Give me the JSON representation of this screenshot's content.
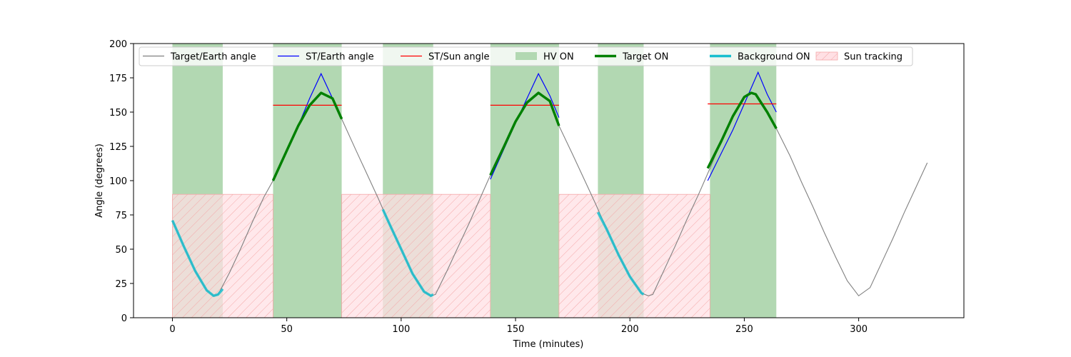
{
  "chart_data": {
    "type": "line",
    "title": "",
    "xlabel": "Time (minutes)",
    "ylabel": "Angle (degrees)",
    "xlim": [
      -17,
      346
    ],
    "ylim": [
      0,
      200
    ],
    "xticks": [
      0,
      50,
      100,
      150,
      200,
      250,
      300
    ],
    "yticks": [
      0,
      25,
      50,
      75,
      100,
      125,
      150,
      175,
      200
    ],
    "grid": false,
    "legend_position": "top-left",
    "colors": {
      "target_earth": "#808080",
      "st_earth": "#0000ff",
      "st_sun": "#ff0000",
      "hv_on": "#b2d8b2",
      "target_on": "#008000",
      "background_on": "#17becf",
      "sun_tracking_fill": "#ffe0e4",
      "sun_tracking_hatch": "#f4a7a7"
    },
    "legend": [
      {
        "key": "target_earth",
        "label": "Target/Earth angle",
        "kind": "line"
      },
      {
        "key": "st_earth",
        "label": "ST/Earth angle",
        "kind": "line"
      },
      {
        "key": "st_sun",
        "label": "ST/Sun angle",
        "kind": "line"
      },
      {
        "key": "hv_on",
        "label": "HV ON",
        "kind": "patch"
      },
      {
        "key": "target_on",
        "label": "Target ON",
        "kind": "thick"
      },
      {
        "key": "background_on",
        "label": "Background ON",
        "kind": "thick"
      },
      {
        "key": "sun_tracking",
        "label": "Sun tracking",
        "kind": "hatch"
      }
    ],
    "hv_on_intervals": [
      [
        0,
        22
      ],
      [
        44,
        74
      ],
      [
        92,
        114
      ],
      [
        139,
        169
      ],
      [
        186,
        206
      ],
      [
        235,
        264
      ]
    ],
    "sun_tracking_intervals": [
      [
        0,
        44
      ],
      [
        74,
        139
      ],
      [
        169,
        235
      ]
    ],
    "sun_tracking_max_angle": 90,
    "target_earth_curve": {
      "x": [
        0,
        5,
        10,
        15,
        18,
        20,
        25,
        30,
        35,
        40,
        44,
        50,
        55,
        60,
        65,
        70,
        74,
        80,
        85,
        90,
        95,
        100,
        105,
        110,
        113,
        115,
        120,
        125,
        130,
        135,
        139,
        145,
        150,
        155,
        160,
        165,
        169,
        175,
        180,
        185,
        190,
        195,
        200,
        205,
        208,
        210,
        215,
        220,
        225,
        230,
        235,
        240,
        245,
        250,
        253,
        255,
        260,
        264,
        270,
        275,
        280,
        285,
        290,
        295,
        300,
        305,
        310,
        315,
        320,
        325,
        330
      ],
      "y": [
        71,
        52,
        34,
        20,
        16,
        17,
        33,
        51,
        70,
        88,
        100,
        122,
        140,
        155,
        164,
        160,
        145,
        123,
        105,
        87,
        68,
        50,
        32,
        19,
        16,
        17,
        34,
        52,
        70,
        89,
        104,
        125,
        143,
        157,
        164,
        158,
        140,
        119,
        101,
        83,
        64,
        46,
        30,
        18,
        16,
        17,
        35,
        53,
        72,
        90,
        109,
        129,
        147,
        161,
        164,
        163,
        150,
        138,
        118,
        99,
        81,
        62,
        44,
        27,
        16,
        22,
        40,
        58,
        77,
        95,
        113
      ]
    },
    "st_earth_segments": [
      {
        "x": [
          44,
          55,
          60,
          65,
          70,
          74
        ],
        "y": [
          100,
          140,
          160,
          178,
          160,
          146
        ]
      },
      {
        "x": [
          139,
          150,
          155,
          160,
          165,
          169
        ],
        "y": [
          101,
          142,
          160,
          178,
          162,
          146
        ]
      },
      {
        "x": [
          234,
          245,
          250,
          256,
          260,
          264
        ],
        "y": [
          100,
          137,
          156,
          179,
          163,
          150
        ]
      }
    ],
    "st_sun_segments": [
      {
        "x": [
          44,
          74
        ],
        "y": [
          155,
          155
        ]
      },
      {
        "x": [
          139,
          169
        ],
        "y": [
          155,
          155
        ]
      },
      {
        "x": [
          234,
          264
        ],
        "y": [
          156,
          156
        ]
      }
    ],
    "target_on_segments": [
      {
        "x": [
          44,
          50,
          55,
          60,
          65,
          70,
          74
        ],
        "y": [
          100,
          122,
          140,
          155,
          164,
          160,
          145
        ]
      },
      {
        "x": [
          139,
          145,
          150,
          155,
          160,
          165,
          169
        ],
        "y": [
          104,
          125,
          143,
          157,
          164,
          158,
          140
        ]
      },
      {
        "x": [
          234,
          240,
          245,
          250,
          253,
          255,
          260,
          264
        ],
        "y": [
          109,
          129,
          147,
          161,
          164,
          163,
          150,
          138
        ]
      }
    ],
    "background_on_segments": [
      {
        "x": [
          0,
          5,
          10,
          15,
          18,
          20,
          22
        ],
        "y": [
          71,
          52,
          34,
          20,
          16,
          17,
          21
        ]
      },
      {
        "x": [
          92,
          95,
          100,
          105,
          110,
          113,
          114
        ],
        "y": [
          79,
          68,
          50,
          32,
          19,
          16,
          17
        ]
      },
      {
        "x": [
          186,
          190,
          195,
          200,
          205,
          206
        ],
        "y": [
          77,
          64,
          46,
          30,
          18,
          17
        ]
      }
    ]
  }
}
